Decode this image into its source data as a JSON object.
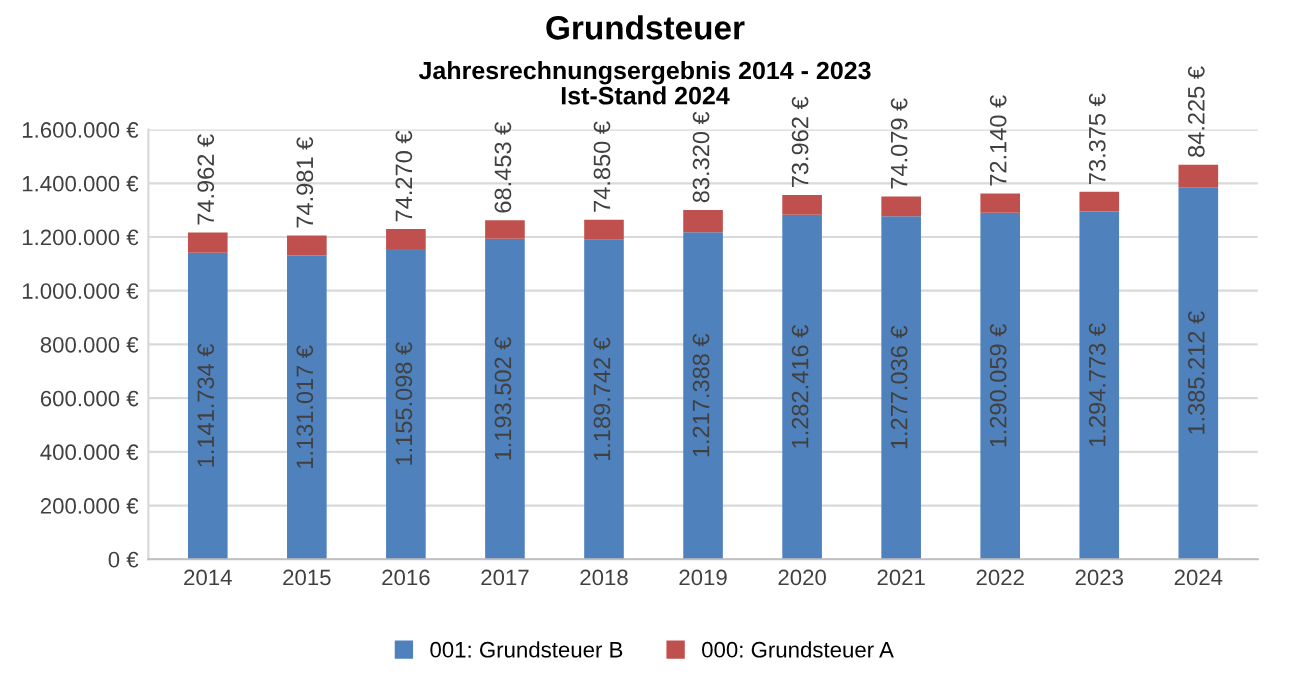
{
  "chart_data": {
    "type": "bar",
    "title": "Grundsteuer",
    "subtitle": "Jahresrechnungsergebnis 2014 - 2023\nIst-Stand 2024",
    "categories": [
      "2014",
      "2015",
      "2016",
      "2017",
      "2018",
      "2019",
      "2020",
      "2021",
      "2022",
      "2023",
      "2024"
    ],
    "stacked": true,
    "series": [
      {
        "name": "001: Grundsteuer B",
        "color": "#4f81bd",
        "values": [
          1141734,
          1131017,
          1155098,
          1193502,
          1189742,
          1217388,
          1282416,
          1277036,
          1290059,
          1294773,
          1385212
        ],
        "value_labels": [
          "1.141.734 €",
          "1.131.017 €",
          "1.155.098 €",
          "1.193.502 €",
          "1.189.742 €",
          "1.217.388 €",
          "1.282.416 €",
          "1.277.036 €",
          "1.290.059 €",
          "1.294.773 €",
          "1.385.212 €"
        ]
      },
      {
        "name": "000: Grundsteuer A",
        "color": "#c0504d",
        "values": [
          74962,
          74981,
          74270,
          68453,
          74850,
          83320,
          73962,
          74079,
          72140,
          73375,
          84225
        ],
        "value_labels": [
          "74.962 €",
          "74.981 €",
          "74.270 €",
          "68.453 €",
          "74.850 €",
          "83.320 €",
          "73.962 €",
          "74.079 €",
          "72.140 €",
          "73.375 €",
          "84.225 €"
        ]
      }
    ],
    "ylim": [
      0,
      1600000
    ],
    "yticks": [
      {
        "value": 0,
        "label": "0 €"
      },
      {
        "value": 200000,
        "label": "200.000 €"
      },
      {
        "value": 400000,
        "label": "400.000 €"
      },
      {
        "value": 600000,
        "label": "600.000 €"
      },
      {
        "value": 800000,
        "label": "800.000 €"
      },
      {
        "value": 1000000,
        "label": "1.000.000 €"
      },
      {
        "value": 1200000,
        "label": "1.200.000 €"
      },
      {
        "value": 1400000,
        "label": "1.400.000 €"
      },
      {
        "value": 1600000,
        "label": "1.600.000 €"
      }
    ],
    "grid": "y",
    "legend": "bottom"
  }
}
